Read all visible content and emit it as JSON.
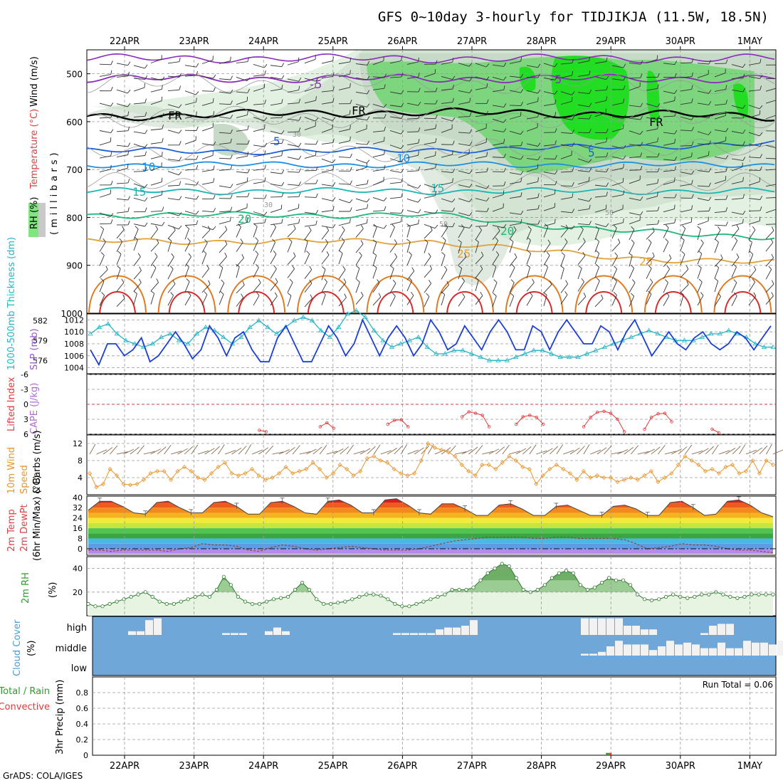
{
  "title": "GFS 0~10day 3-hourly for TIDJIKJA (11.5W, 18.5N)",
  "footer": "GrADS: COLA/IGES",
  "dates": [
    "22APR",
    "23APR",
    "24APR",
    "25APR",
    "26APR",
    "27APR",
    "28APR",
    "29APR",
    "30APR",
    "1MAY"
  ],
  "colors": {
    "temp_axis_label": "#e24040",
    "rh_fill": "#c0c0c0",
    "slp": "#1c3fd6",
    "thickness": "#26b5c6",
    "lifted": "#e23a3a",
    "cape": "#b06ad6",
    "wind10": "#e8962a",
    "rh2m": "#2ca02c",
    "cloud_blue": "#6fa8d8",
    "rain": "#2ca02c"
  },
  "chart_data": [
    {
      "type": "heatmap",
      "panel": "upper_air",
      "ylabel_parts": [
        "RH (%)",
        "Temperature (°C)",
        "Wind (m/s)"
      ],
      "yunits": "(millibars)",
      "y_ticks": [
        500,
        600,
        700,
        800,
        900,
        1000
      ],
      "contour_labels": [
        "-5",
        "FR",
        "5",
        "10",
        "15",
        "20",
        "25",
        "30",
        "50"
      ],
      "isotherms": [
        {
          "label": "-5",
          "pressure": 510
        },
        {
          "label": "FR",
          "pressure": 590
        },
        {
          "label": "5",
          "pressure": 650
        },
        {
          "label": "10",
          "pressure": 690
        },
        {
          "label": "15",
          "pressure": 745
        },
        {
          "label": "20",
          "pressure": 795
        },
        {
          "label": "25",
          "pressure": 850
        }
      ]
    },
    {
      "type": "line",
      "panel": "slp_thickness",
      "ylabel_left": "1000-500mb Thickness (dm)",
      "ylabel_right": "SLP (mb)",
      "thickness_ticks": [
        "582",
        "579",
        "576"
      ],
      "slp_ticks": [
        "1012",
        "1010",
        "1008",
        "1006",
        "1004"
      ],
      "series": [
        {
          "name": "SLP",
          "values": [
            1007,
            1004.5,
            1008,
            1008,
            1006,
            1007,
            1009,
            1005,
            1006,
            1008,
            1010,
            1008,
            1005.5,
            1007,
            1011,
            1009,
            1006,
            1009,
            1010,
            1007,
            1005,
            1005,
            1009,
            1011,
            1008,
            1005,
            1005,
            1008,
            1011,
            1009,
            1006,
            1008,
            1012,
            1009,
            1006,
            1009,
            1011,
            1009,
            1006,
            1008,
            1012,
            1010,
            1007,
            1008,
            1011,
            1009,
            1007,
            1010,
            1012,
            1010,
            1007,
            1007,
            1011,
            1010,
            1007,
            1010,
            1012,
            1010,
            1008,
            1008,
            1011,
            1010,
            1007,
            1010,
            1012,
            1009,
            1006,
            1008,
            1010,
            1008,
            1007,
            1009,
            1010,
            1008,
            1007,
            1008,
            1010,
            1009,
            1007,
            1009,
            1011
          ]
        },
        {
          "name": "Thickness",
          "values": [
            580,
            581,
            581.5,
            580,
            579,
            578.5,
            578,
            578.5,
            579.5,
            580,
            579,
            578.5,
            580,
            581,
            580.5,
            579.5,
            578.5,
            579.5,
            581,
            582,
            581,
            580,
            581,
            582,
            582.5,
            582,
            580.5,
            579.5,
            581,
            583,
            583.5,
            582.5,
            580.5,
            579,
            578,
            578.5,
            579,
            579.5,
            578,
            577,
            577,
            577.5,
            577.5,
            577,
            576.5,
            576,
            576,
            576,
            576.5,
            577,
            577.5,
            577.5,
            577,
            576.5,
            576.5,
            576.5,
            577,
            577.5,
            578,
            578.5,
            579,
            579.5,
            580,
            580.5,
            580,
            579.5,
            579,
            579,
            579,
            579.5,
            580,
            580,
            580.5,
            580,
            579.5,
            578.5,
            578,
            578
          ]
        }
      ]
    },
    {
      "type": "line",
      "panel": "lifted_index_cape",
      "ylabel_left": "Lifted Index",
      "ylabel_right": "CAPE (J/kg)",
      "y_ticks": [
        "-6",
        "-3",
        "0",
        "3",
        "6"
      ],
      "series": [
        {
          "name": "Lifted Index",
          "values": [
            6,
            6,
            6,
            6,
            6,
            6,
            6,
            6,
            6,
            6,
            6,
            6,
            6,
            6,
            6,
            6,
            6,
            6,
            6,
            6,
            6,
            6,
            6,
            6,
            6,
            5.2,
            5.5,
            6,
            6,
            6,
            6,
            6,
            6,
            6,
            4.5,
            3.7,
            4.8,
            6,
            6,
            6,
            6,
            6,
            6,
            6,
            4,
            3.2,
            3.1,
            4.5,
            6,
            6,
            6,
            6,
            6,
            6,
            6,
            2.5,
            1.5,
            1.8,
            2.2,
            4.5,
            6,
            6,
            6,
            4,
            2.5,
            2.2,
            2.6,
            4,
            6,
            6,
            6,
            6,
            6,
            4.5,
            2.6,
            1.6,
            1.4,
            1.8,
            3,
            5.5,
            6,
            6,
            5,
            2.6,
            1.9,
            1.8,
            3.5,
            6,
            6,
            6,
            6,
            6,
            5,
            5.7,
            6,
            6,
            6,
            6,
            6,
            6,
            6,
            6
          ]
        }
      ]
    },
    {
      "type": "line",
      "panel": "wind10m",
      "ylabel": "10m Wind Speed & Barbs (m/s)",
      "y_ticks": [
        "12",
        "8",
        "4"
      ],
      "series": [
        {
          "name": "10m Wind Speed",
          "values": [
            5,
            1.8,
            2.5,
            6,
            4.5,
            2.5,
            2.3,
            2.5,
            3.5,
            5,
            5.5,
            5.5,
            3.5,
            5.5,
            6.5,
            5.5,
            4,
            3.5,
            5,
            6.5,
            7.5,
            5,
            4.5,
            5,
            6,
            4.5,
            3.5,
            4,
            5,
            6.5,
            5,
            5.5,
            6,
            7.5,
            6,
            4,
            5,
            7,
            6,
            4.5,
            5.5,
            8.5,
            9,
            8,
            7.5,
            6,
            5,
            4.5,
            5,
            8,
            12,
            11,
            10.5,
            10,
            9,
            7,
            5.5,
            4.5,
            7,
            7,
            6,
            7.5,
            9,
            8,
            6.5,
            6,
            2.5,
            4.5,
            6,
            7,
            6,
            5,
            3.5,
            5.5,
            4,
            4.5,
            4,
            4,
            3,
            3.5,
            4,
            3.5,
            4.5,
            5.5,
            3,
            4,
            5,
            7,
            9,
            8,
            7,
            5.5,
            6,
            5,
            6.5,
            7,
            5,
            5.5,
            8,
            5,
            8,
            7
          ]
        }
      ]
    },
    {
      "type": "area",
      "panel": "temp2m",
      "ylabel": "2m Temp 2m DewPt (6hr Min/Max) (°C)",
      "y_ticks": [
        "40",
        "32",
        "24",
        "16",
        "8",
        "0"
      ],
      "series": [
        {
          "name": "2m Temp",
          "values": [
            30,
            37,
            37,
            33,
            28,
            27,
            36,
            37,
            32,
            28,
            28,
            36,
            37,
            33,
            27,
            27,
            36,
            37,
            33,
            28,
            27,
            37,
            38,
            34,
            28,
            28,
            38,
            39,
            34,
            28,
            27,
            35,
            35,
            31,
            26,
            26,
            34,
            35,
            31,
            26,
            26,
            33,
            34,
            30,
            26,
            26,
            33,
            34,
            31,
            26,
            26,
            36,
            37,
            32,
            26,
            27,
            37,
            38,
            34,
            28,
            25
          ]
        },
        {
          "name": "2m DewPt",
          "values": [
            -1,
            -1,
            -2,
            -1,
            -1,
            -1,
            -1,
            -2,
            0,
            1,
            4,
            3,
            3,
            2,
            -1,
            -2,
            1,
            3,
            2,
            0,
            -1,
            0,
            1,
            2,
            1,
            0,
            -1,
            -1,
            -1,
            0,
            2,
            4,
            6,
            7,
            8,
            9,
            9,
            9,
            9,
            8,
            8,
            9,
            9,
            8,
            8,
            8,
            8,
            7,
            4,
            0,
            1,
            2,
            4,
            3,
            3,
            2,
            0,
            -1,
            -1,
            -2,
            -3
          ]
        }
      ]
    },
    {
      "type": "area",
      "panel": "rh2m",
      "ylabel": "2m RH (%)",
      "y_ticks": [
        "40",
        "20"
      ],
      "series": [
        {
          "name": "2m RH",
          "values": [
            10,
            8,
            8,
            10,
            12,
            14,
            16,
            18,
            20,
            16,
            12,
            10,
            10,
            12,
            14,
            16,
            18,
            16,
            22,
            33,
            26,
            16,
            12,
            10,
            10,
            12,
            14,
            15,
            16,
            22,
            28,
            22,
            14,
            10,
            10,
            11,
            12,
            14,
            16,
            18,
            18,
            17,
            14,
            10,
            8,
            8,
            10,
            12,
            14,
            16,
            18,
            22,
            22,
            22,
            24,
            30,
            36,
            40,
            44,
            42,
            32,
            22,
            20,
            22,
            26,
            32,
            36,
            38,
            36,
            26,
            22,
            24,
            28,
            32,
            30,
            30,
            26,
            18,
            14,
            13,
            14,
            16,
            18,
            16,
            15,
            16,
            18,
            18,
            20,
            18,
            16,
            15,
            16,
            18,
            18,
            18,
            18
          ]
        }
      ]
    },
    {
      "type": "bar",
      "panel": "cloud_cover",
      "ylabel": "Cloud Cover (%)",
      "y_ticks": [
        "high",
        "middle",
        "low"
      ],
      "note": "white bars show cloud fraction per layer on a blue background"
    },
    {
      "type": "bar",
      "panel": "precip",
      "ylabel": "3hr Precip (mm)",
      "ylabel_left_parts": [
        "Total / Rain",
        "Convective"
      ],
      "y_ticks": [
        "0.8",
        "0.6",
        "0.4",
        "0.2",
        "0"
      ],
      "run_total": "Run Total = 0.06",
      "series": [
        {
          "name": "Total / Rain",
          "x": "29APR",
          "values": [
            0.03
          ]
        },
        {
          "name": "Convective",
          "x": "29APR",
          "values": [
            0.03
          ]
        }
      ]
    }
  ]
}
